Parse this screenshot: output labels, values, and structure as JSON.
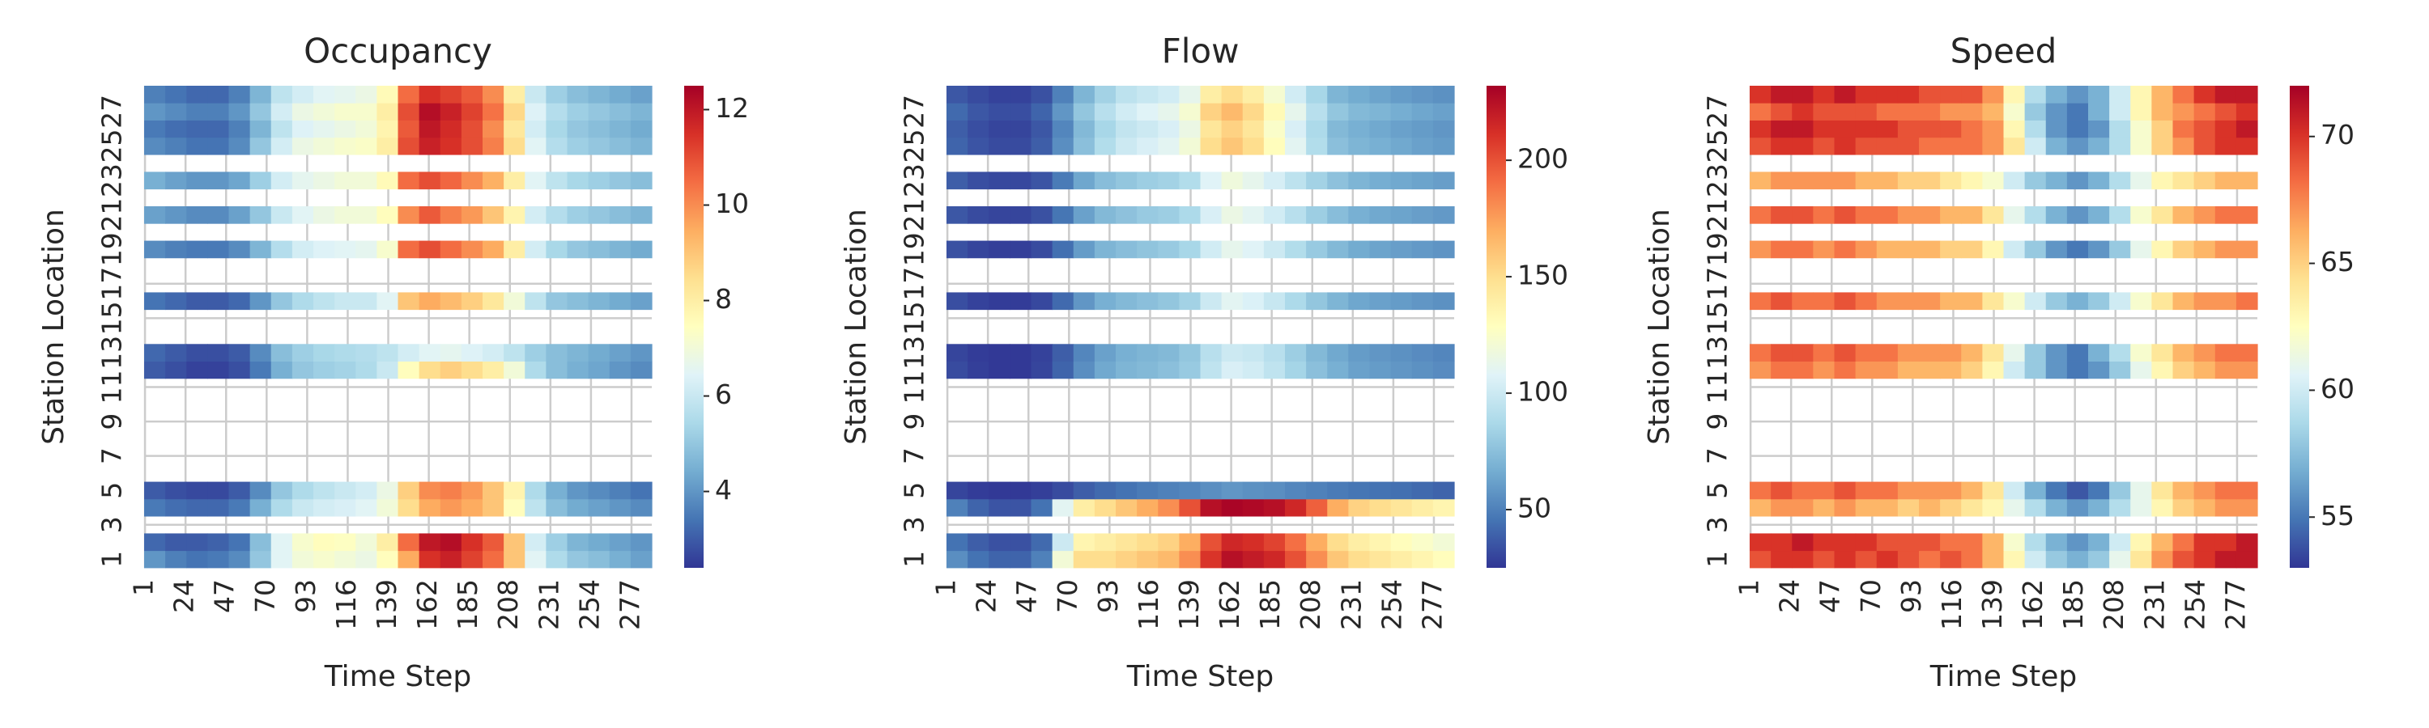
{
  "chart_data": [
    {
      "type": "heatmap",
      "title": "Occupancy",
      "x_label": "Time Step",
      "y_label": "Station Location",
      "x": [
        1,
        13,
        25,
        37,
        49,
        61,
        73,
        85,
        97,
        109,
        121,
        133,
        145,
        157,
        169,
        181,
        193,
        205,
        217,
        229,
        241,
        253,
        265,
        277
      ],
      "y": [
        1,
        2,
        4,
        5,
        12,
        13,
        16,
        19,
        21,
        23,
        25,
        26,
        27,
        28
      ],
      "z": [
        [
          4,
          3.6,
          3.4,
          3.5,
          3.8,
          5,
          6.5,
          7,
          7.2,
          7,
          6.8,
          7.5,
          9.5,
          11.5,
          11.8,
          11.2,
          10.5,
          9,
          6.5,
          5.5,
          5,
          4.8,
          4.5,
          4.2
        ],
        [
          3.2,
          3,
          3,
          3.1,
          3.4,
          4.8,
          6.5,
          7.2,
          7.5,
          7.4,
          7,
          8,
          10.5,
          12,
          12.2,
          11.5,
          10.8,
          9,
          6.2,
          5.2,
          4.6,
          4.4,
          4.2,
          4
        ],
        [
          3.5,
          3.3,
          3.2,
          3.2,
          3.5,
          4.5,
          5.5,
          6,
          6.2,
          6.3,
          6.5,
          7,
          8.5,
          9.5,
          9.8,
          9.5,
          9,
          7.5,
          5.8,
          4.8,
          4.4,
          4.2,
          4,
          3.8
        ],
        [
          3,
          2.8,
          2.7,
          2.7,
          3,
          3.8,
          5,
          5.5,
          5.8,
          6,
          6.2,
          6.8,
          8.8,
          10,
          10.2,
          9.8,
          9,
          7.8,
          5.5,
          4.5,
          4,
          3.8,
          3.6,
          3.4
        ],
        [
          3,
          2.8,
          2.6,
          2.6,
          2.8,
          3.5,
          4.5,
          5,
          5.2,
          5.3,
          5.5,
          6,
          7.5,
          8.5,
          8.8,
          8.5,
          8,
          7,
          5.5,
          4.8,
          4.5,
          4.3,
          4,
          3.8
        ],
        [
          3.2,
          3,
          2.8,
          2.8,
          3,
          3.8,
          4.8,
          5.2,
          5.4,
          5.5,
          5.6,
          5.8,
          6.2,
          6.5,
          6.6,
          6.4,
          6.2,
          5.8,
          5.2,
          4.8,
          4.6,
          4.4,
          4.2,
          4
        ],
        [
          3.4,
          3.2,
          3,
          3,
          3.2,
          4,
          5,
          5.5,
          5.8,
          6,
          6,
          6.5,
          9,
          9.5,
          9.2,
          8.8,
          8.2,
          7,
          5.8,
          5,
          4.8,
          4.6,
          4.4,
          4.2
        ],
        [
          3.8,
          3.6,
          3.5,
          3.5,
          3.8,
          4.6,
          5.6,
          6.2,
          6.4,
          6.5,
          6.6,
          7.2,
          10.5,
          11,
          10.5,
          10,
          9.5,
          8,
          6.2,
          5.4,
          5,
          4.8,
          4.6,
          4.4
        ],
        [
          4.2,
          4,
          3.8,
          3.8,
          4.2,
          5,
          6,
          6.5,
          6.8,
          7,
          7,
          7.5,
          10,
          10.8,
          10.2,
          9.8,
          9,
          7.8,
          6.2,
          5.6,
          5.2,
          5,
          4.8,
          4.6
        ],
        [
          4.5,
          4.2,
          4,
          4,
          4.3,
          5.2,
          6.2,
          6.6,
          6.8,
          7,
          7,
          7.6,
          10.5,
          11,
          10.6,
          10,
          9.4,
          8,
          6.5,
          5.8,
          5.4,
          5.2,
          5,
          4.8
        ],
        [
          3.8,
          3.6,
          3.4,
          3.4,
          3.8,
          5,
          6.2,
          6.8,
          7,
          7.2,
          7.3,
          8,
          11,
          11.8,
          11.5,
          11,
          10.2,
          8.5,
          6.5,
          5.6,
          5.2,
          5,
          4.8,
          4.6
        ],
        [
          3.5,
          3.3,
          3.2,
          3.2,
          3.6,
          4.6,
          5.8,
          6.4,
          6.6,
          6.8,
          7,
          7.8,
          10.8,
          12,
          11.6,
          11,
          10,
          8.2,
          6.2,
          5.4,
          5,
          4.8,
          4.6,
          4.4
        ],
        [
          4,
          3.8,
          3.6,
          3.6,
          4,
          5,
          6.2,
          6.8,
          7,
          7.2,
          7.2,
          8,
          11,
          12.2,
          11.8,
          11.2,
          10.4,
          8.6,
          6.4,
          5.6,
          5.2,
          5,
          4.8,
          4.6
        ],
        [
          3.6,
          3.4,
          3.2,
          3.2,
          3.6,
          4.6,
          5.8,
          6.2,
          6.5,
          6.6,
          6.8,
          7.6,
          10.5,
          11.5,
          11.2,
          10.8,
          10,
          8,
          6,
          5.2,
          4.8,
          4.6,
          4.4,
          4.2
        ]
      ],
      "xlim": [
        0.5,
        288.5
      ],
      "ylim": [
        0.5,
        28.5
      ],
      "xticks": [
        1,
        24,
        47,
        70,
        93,
        116,
        139,
        162,
        185,
        208,
        231,
        254,
        277
      ],
      "yticks": [
        1,
        3,
        5,
        7,
        9,
        11,
        13,
        15,
        17,
        19,
        21,
        23,
        25,
        27
      ],
      "zlim": [
        2.4,
        12.5
      ],
      "zticks": [
        4,
        6,
        8,
        10,
        12
      ],
      "colormap": [
        "#313695",
        "#4575b4",
        "#74add1",
        "#abd9e9",
        "#e0f3f8",
        "#ffffbf",
        "#fee090",
        "#fdae61",
        "#f46d43",
        "#d73027",
        "#a50026"
      ],
      "grid": true
    },
    {
      "type": "heatmap",
      "title": "Flow",
      "x_label": "Time Step",
      "y_label": "Station Location",
      "x": [
        1,
        13,
        25,
        37,
        49,
        61,
        73,
        85,
        97,
        109,
        121,
        133,
        145,
        157,
        169,
        181,
        193,
        205,
        217,
        229,
        241,
        253,
        265,
        277
      ],
      "y": [
        1,
        2,
        4,
        5,
        12,
        13,
        16,
        19,
        21,
        23,
        25,
        26,
        27,
        28
      ],
      "z": [
        [
          55,
          45,
          40,
          40,
          50,
          120,
          150,
          150,
          155,
          160,
          165,
          180,
          210,
          225,
          220,
          215,
          200,
          180,
          160,
          150,
          145,
          140,
          135,
          130
        ],
        [
          45,
          38,
          34,
          34,
          42,
          100,
          135,
          140,
          145,
          150,
          155,
          170,
          200,
          215,
          212,
          205,
          190,
          170,
          150,
          140,
          135,
          130,
          125,
          120
        ],
        [
          50,
          40,
          35,
          35,
          45,
          110,
          140,
          150,
          160,
          170,
          180,
          200,
          225,
          230,
          228,
          225,
          215,
          195,
          170,
          155,
          150,
          145,
          140,
          135
        ],
        [
          30,
          27,
          26,
          26,
          28,
          32,
          38,
          42,
          45,
          48,
          50,
          52,
          55,
          58,
          56,
          55,
          52,
          50,
          48,
          46,
          45,
          44,
          42,
          40
        ],
        [
          32,
          28,
          26,
          26,
          30,
          40,
          55,
          65,
          70,
          72,
          75,
          80,
          95,
          105,
          102,
          95,
          85,
          75,
          68,
          62,
          60,
          58,
          56,
          54
        ],
        [
          30,
          27,
          26,
          26,
          29,
          38,
          52,
          62,
          68,
          70,
          72,
          78,
          92,
          100,
          98,
          92,
          82,
          72,
          65,
          60,
          58,
          56,
          54,
          52
        ],
        [
          33,
          29,
          27,
          27,
          31,
          42,
          58,
          68,
          72,
          75,
          78,
          84,
          100,
          110,
          106,
          98,
          88,
          78,
          70,
          64,
          62,
          60,
          58,
          56
        ],
        [
          34,
          30,
          28,
          28,
          32,
          44,
          60,
          70,
          74,
          77,
          80,
          86,
          102,
          112,
          108,
          100,
          90,
          80,
          72,
          66,
          63,
          61,
          59,
          57
        ],
        [
          36,
          32,
          30,
          30,
          34,
          46,
          62,
          72,
          76,
          80,
          82,
          88,
          105,
          115,
          110,
          102,
          92,
          82,
          74,
          68,
          65,
          63,
          61,
          59
        ],
        [
          38,
          33,
          31,
          31,
          35,
          48,
          64,
          74,
          78,
          82,
          84,
          90,
          108,
          118,
          112,
          104,
          94,
          84,
          76,
          70,
          67,
          65,
          63,
          61
        ],
        [
          40,
          35,
          32,
          32,
          38,
          55,
          75,
          90,
          100,
          105,
          110,
          120,
          150,
          160,
          150,
          130,
          110,
          90,
          75,
          70,
          68,
          65,
          62,
          60
        ],
        [
          38,
          33,
          30,
          30,
          36,
          52,
          72,
          86,
          96,
          100,
          105,
          115,
          145,
          155,
          145,
          125,
          105,
          88,
          72,
          68,
          65,
          62,
          60,
          58
        ],
        [
          42,
          36,
          33,
          33,
          40,
          58,
          78,
          92,
          102,
          108,
          112,
          122,
          155,
          165,
          152,
          132,
          112,
          92,
          78,
          72,
          70,
          67,
          64,
          62
        ],
        [
          36,
          32,
          29,
          29,
          34,
          50,
          70,
          84,
          94,
          98,
          102,
          112,
          140,
          150,
          140,
          122,
          102,
          86,
          70,
          66,
          63,
          60,
          58,
          56
        ]
      ],
      "xlim": [
        0.5,
        288.5
      ],
      "ylim": [
        0.5,
        28.5
      ],
      "xticks": [
        1,
        24,
        47,
        70,
        93,
        116,
        139,
        162,
        185,
        208,
        231,
        254,
        277
      ],
      "yticks": [
        1,
        3,
        5,
        7,
        9,
        11,
        13,
        15,
        17,
        19,
        21,
        23,
        25,
        27
      ],
      "zlim": [
        25,
        232
      ],
      "zticks": [
        50,
        100,
        150,
        200
      ],
      "colormap": [
        "#313695",
        "#4575b4",
        "#74add1",
        "#abd9e9",
        "#e0f3f8",
        "#ffffbf",
        "#fee090",
        "#fdae61",
        "#f46d43",
        "#d73027",
        "#a50026"
      ],
      "grid": true
    },
    {
      "type": "heatmap",
      "title": "Speed",
      "x_label": "Time Step",
      "y_label": "Station Location",
      "x": [
        1,
        13,
        25,
        37,
        49,
        61,
        73,
        85,
        97,
        109,
        121,
        133,
        145,
        157,
        169,
        181,
        193,
        205,
        217,
        229,
        241,
        253,
        265,
        277
      ],
      "y": [
        1,
        2,
        4,
        5,
        12,
        13,
        16,
        19,
        21,
        23,
        25,
        26,
        27,
        28
      ],
      "z": [
        [
          69,
          70,
          70,
          69,
          70,
          69,
          70,
          69,
          68,
          69,
          68,
          66,
          63,
          60,
          58,
          57,
          58,
          61,
          64,
          67,
          69,
          70,
          71,
          71
        ],
        [
          70,
          70,
          71,
          70,
          70,
          70,
          69,
          69,
          69,
          68,
          68,
          66,
          62,
          59,
          57,
          56,
          57,
          60,
          63,
          66,
          68,
          70,
          70,
          71
        ],
        [
          66,
          67,
          67,
          66,
          67,
          66,
          66,
          65,
          66,
          65,
          64,
          63,
          61,
          59,
          57,
          56,
          57,
          59,
          61,
          63,
          65,
          66,
          67,
          67
        ],
        [
          68,
          69,
          68,
          68,
          69,
          68,
          68,
          67,
          67,
          67,
          66,
          64,
          60,
          57,
          55,
          54,
          55,
          58,
          61,
          64,
          66,
          67,
          68,
          68
        ],
        [
          67,
          68,
          68,
          67,
          68,
          67,
          67,
          66,
          66,
          66,
          65,
          63,
          60,
          58,
          56,
          55,
          56,
          58,
          61,
          63,
          65,
          66,
          67,
          67
        ],
        [
          68,
          69,
          69,
          68,
          69,
          68,
          68,
          67,
          67,
          67,
          66,
          64,
          61,
          58,
          56,
          55,
          57,
          59,
          62,
          64,
          66,
          67,
          68,
          68
        ],
        [
          68,
          69,
          68,
          68,
          69,
          68,
          67,
          67,
          67,
          66,
          66,
          64,
          62,
          60,
          58,
          57,
          58,
          60,
          62,
          64,
          66,
          67,
          67,
          68
        ],
        [
          67,
          68,
          68,
          67,
          68,
          67,
          66,
          66,
          66,
          65,
          65,
          63,
          60,
          58,
          56,
          55,
          56,
          58,
          61,
          63,
          65,
          66,
          67,
          67
        ],
        [
          68,
          69,
          69,
          68,
          69,
          68,
          68,
          67,
          67,
          66,
          66,
          64,
          61,
          59,
          57,
          56,
          57,
          59,
          62,
          64,
          66,
          67,
          68,
          68
        ],
        [
          66,
          67,
          67,
          67,
          67,
          66,
          66,
          65,
          65,
          64,
          63,
          62,
          60,
          58,
          57,
          56,
          57,
          59,
          61,
          63,
          64,
          65,
          66,
          66
        ],
        [
          69,
          70,
          70,
          69,
          70,
          69,
          69,
          69,
          68,
          68,
          68,
          67,
          64,
          60,
          57,
          56,
          57,
          59,
          62,
          65,
          67,
          69,
          70,
          70
        ],
        [
          70,
          71,
          71,
          70,
          70,
          70,
          70,
          69,
          69,
          69,
          68,
          67,
          63,
          59,
          56,
          55,
          56,
          59,
          62,
          65,
          68,
          69,
          70,
          71
        ],
        [
          68,
          69,
          70,
          69,
          69,
          69,
          68,
          68,
          68,
          67,
          67,
          66,
          62,
          58,
          56,
          55,
          57,
          60,
          63,
          66,
          67,
          68,
          69,
          70
        ],
        [
          70,
          71,
          71,
          70,
          71,
          70,
          70,
          70,
          69,
          69,
          69,
          67,
          63,
          59,
          57,
          56,
          57,
          60,
          63,
          66,
          68,
          70,
          71,
          71
        ]
      ],
      "xlim": [
        0.5,
        288.5
      ],
      "ylim": [
        0.5,
        28.5
      ],
      "xticks": [
        1,
        24,
        47,
        70,
        93,
        116,
        139,
        162,
        185,
        208,
        231,
        254,
        277
      ],
      "yticks": [
        1,
        3,
        5,
        7,
        9,
        11,
        13,
        15,
        17,
        19,
        21,
        23,
        25,
        27
      ],
      "zlim": [
        53,
        72
      ],
      "zticks": [
        55,
        60,
        65,
        70
      ],
      "colormap": [
        "#313695",
        "#4575b4",
        "#74add1",
        "#abd9e9",
        "#e0f3f8",
        "#ffffbf",
        "#fee090",
        "#fdae61",
        "#f46d43",
        "#d73027",
        "#a50026"
      ],
      "grid": true
    }
  ]
}
